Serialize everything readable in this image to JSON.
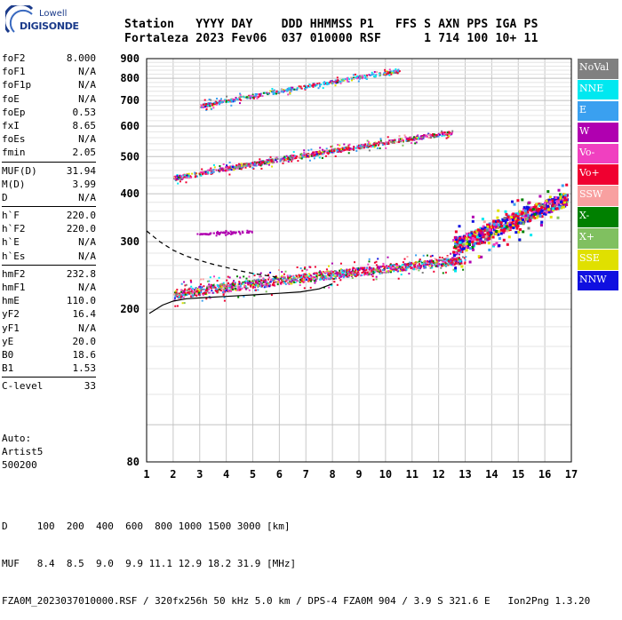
{
  "logo": {
    "brand": "Lowell",
    "product": "DIGISONDE"
  },
  "header": {
    "labels": [
      "Station",
      "YYYY",
      "DAY",
      "DDD",
      "HHMMSS",
      "P1",
      "FFS",
      "S",
      "AXN",
      "PPS",
      "IGA",
      "PS"
    ],
    "values": [
      "Fortaleza",
      "2023",
      "Fev06",
      "037",
      "010000",
      "RSF",
      "",
      "1",
      "714",
      "100",
      "10+",
      "11"
    ]
  },
  "params": {
    "group1": [
      [
        "foF2",
        "8.000"
      ],
      [
        "foF1",
        "N/A"
      ],
      [
        "foF1p",
        "N/A"
      ],
      [
        "foE",
        "N/A"
      ],
      [
        "foEp",
        "0.53"
      ],
      [
        "fxI",
        "8.65"
      ],
      [
        "foEs",
        "N/A"
      ],
      [
        "fmin",
        "2.05"
      ]
    ],
    "group2": [
      [
        "MUF(D)",
        "31.94"
      ],
      [
        "M(D)",
        "3.99"
      ],
      [
        "D",
        "N/A"
      ]
    ],
    "group3": [
      [
        "h`F",
        "220.0"
      ],
      [
        "h`F2",
        "220.0"
      ],
      [
        "h`E",
        "N/A"
      ],
      [
        "h`Es",
        "N/A"
      ]
    ],
    "group4": [
      [
        "hmF2",
        "232.8"
      ],
      [
        "hmF1",
        "N/A"
      ],
      [
        "hmE",
        "110.0"
      ],
      [
        "yF2",
        "16.4"
      ],
      [
        "yF1",
        "N/A"
      ],
      [
        "yE",
        "20.0"
      ],
      [
        "B0",
        "18.6"
      ],
      [
        "B1",
        "1.53"
      ]
    ],
    "group5": [
      [
        "C-level",
        "33"
      ]
    ]
  },
  "auto": {
    "line1": "Auto:",
    "line2": "Artist5",
    "line3": "500200"
  },
  "legend": [
    {
      "label": "NoVal",
      "color": "#808080"
    },
    {
      "label": "NNE",
      "color": "#00e8f0"
    },
    {
      "label": "E",
      "color": "#3aa0f0"
    },
    {
      "label": "W",
      "color": "#b000b0"
    },
    {
      "label": "Vo-",
      "color": "#f040c0"
    },
    {
      "label": "Vo+",
      "color": "#f00030"
    },
    {
      "label": "SSW",
      "color": "#f8a0a0"
    },
    {
      "label": "X-",
      "color": "#008000"
    },
    {
      "label": "X+",
      "color": "#80c060"
    },
    {
      "label": "SSE",
      "color": "#e0e000"
    },
    {
      "label": "NNW",
      "color": "#1010e0"
    }
  ],
  "footer": {
    "line1": "D     100  200  400  600  800 1000 1500 3000 [km]",
    "line2": "MUF   8.4  8.5  9.0  9.9 11.1 12.9 18.2 31.9 [MHz]",
    "line3": "FZA0M_2023037010000.RSF / 320fx256h 50 kHz 5.0 km / DPS-4 FZA0M 904 / 3.9 S 321.6 E   Ion2Png 1.3.20"
  },
  "chart_data": {
    "type": "scatter",
    "x_ticks": [
      1,
      2,
      3,
      4,
      5,
      6,
      7,
      8,
      9,
      10,
      11,
      12,
      13,
      14,
      15,
      16,
      17
    ],
    "y_ticks": [
      80,
      200,
      300,
      400,
      500,
      600,
      700,
      800,
      900
    ],
    "xlim": [
      1,
      17
    ],
    "ylim": [
      80,
      900
    ],
    "y_scale": "log",
    "grid": true,
    "clusters": [
      {
        "name_ref": "F2 first hop",
        "x": [
          2.0,
          13.0
        ],
        "y": [
          220,
          270
        ],
        "spread": 12
      },
      {
        "name_ref": "F2 spread",
        "x": [
          12.5,
          16.8
        ],
        "y": [
          290,
          390
        ],
        "spread": 30
      },
      {
        "name_ref": "second hop",
        "x": [
          2.0,
          12.5
        ],
        "y": [
          440,
          580
        ],
        "spread": 12
      },
      {
        "name_ref": "third hop",
        "x": [
          3.0,
          10.5
        ],
        "y": [
          680,
          840
        ],
        "spread": 15
      },
      {
        "name_ref": "patch",
        "x": [
          2.8,
          5.0
        ],
        "y": [
          315,
          320
        ],
        "spread": 3
      }
    ],
    "profile": {
      "x": [
        1.1,
        1.6,
        2.0,
        2.5,
        3.0,
        4.0,
        5.0,
        6.0,
        6.8,
        7.5,
        8.0
      ],
      "y": [
        195,
        205,
        210,
        213,
        214,
        216,
        218,
        220,
        222,
        226,
        232.8
      ]
    },
    "profile_upper": {
      "x": [
        1.0,
        1.5,
        2.0,
        2.5,
        3.0,
        3.5,
        4.0,
        4.5,
        5.0,
        5.5,
        6.0
      ],
      "y": [
        320,
        300,
        285,
        275,
        268,
        262,
        257,
        252,
        248,
        245,
        242
      ]
    }
  }
}
